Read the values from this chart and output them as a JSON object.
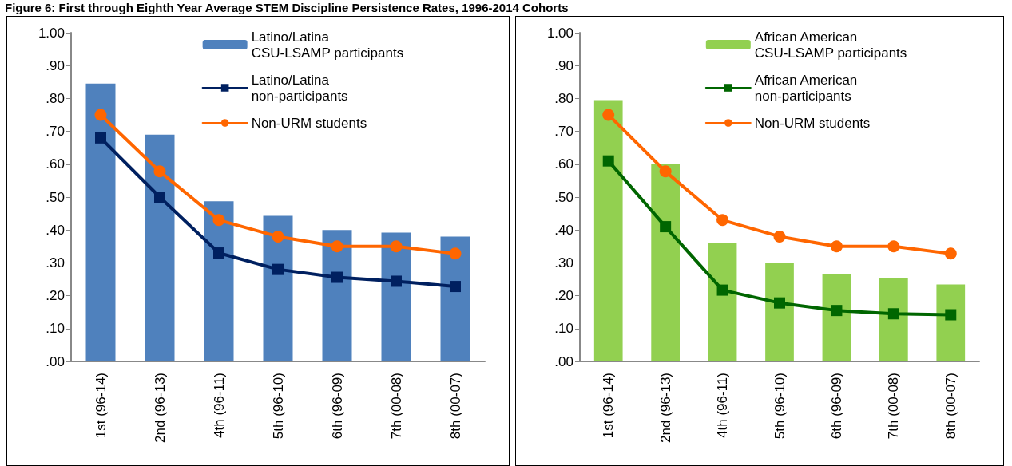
{
  "chart_data": [
    {
      "type": "bar",
      "title": "Figure 6: First through Eighth Year Average STEM Discipline Persistence Rates, 1996-2014 Cohorts",
      "categories": [
        "1st (96-14)",
        "2nd (96-13)",
        "4th (96-11)",
        "5th (96-10)",
        "6th (96-09)",
        "7th (00-08)",
        "8th (00-07)"
      ],
      "series": [
        {
          "name": "Latino/Latina\nCSU-LSAMP participants",
          "color": "#4f81bd",
          "values": [
            0.845,
            0.69,
            0.487,
            0.443,
            0.4,
            0.392,
            0.38
          ]
        },
        {
          "name": "Latino/Latina\nnon-participants",
          "type": "line",
          "marker": "square",
          "color": "#002060",
          "values": [
            0.68,
            0.5,
            0.33,
            0.28,
            0.256,
            0.244,
            0.228
          ]
        },
        {
          "name": "Non-URM students",
          "type": "line",
          "marker": "circle",
          "color": "#ff6600",
          "values": [
            0.75,
            0.578,
            0.43,
            0.38,
            0.35,
            0.35,
            0.328
          ]
        }
      ],
      "ylim": [
        0,
        1
      ],
      "yticks": [
        {
          "value": 0,
          "label": ".00"
        },
        {
          "value": 0.1,
          "label": ".10"
        },
        {
          "value": 0.2,
          "label": ".20"
        },
        {
          "value": 0.3,
          "label": ".30"
        },
        {
          "value": 0.4,
          "label": ".40"
        },
        {
          "value": 0.5,
          "label": ".50"
        },
        {
          "value": 0.6,
          "label": ".60"
        },
        {
          "value": 0.7,
          "label": ".70"
        },
        {
          "value": 0.8,
          "label": ".80"
        },
        {
          "value": 0.9,
          "label": ".90"
        },
        {
          "value": 1,
          "label": "1.00"
        }
      ],
      "grid": false,
      "legend": "top right"
    },
    {
      "type": "bar",
      "categories": [
        "1st (96-14)",
        "2nd (96-13)",
        "4th (96-11)",
        "5th (96-10)",
        "6th (96-09)",
        "7th (00-08)",
        "8th (00-07)"
      ],
      "series": [
        {
          "name": "African American\nCSU-LSAMP participants",
          "color": "#92d050",
          "values": [
            0.795,
            0.6,
            0.36,
            0.3,
            0.267,
            0.253,
            0.234
          ]
        },
        {
          "name": "African American\nnon-participants",
          "type": "line",
          "marker": "square",
          "color": "#006600",
          "values": [
            0.61,
            0.41,
            0.217,
            0.178,
            0.155,
            0.145,
            0.142
          ]
        },
        {
          "name": "Non-URM students",
          "type": "line",
          "marker": "circle",
          "color": "#ff6600",
          "values": [
            0.75,
            0.578,
            0.43,
            0.38,
            0.35,
            0.35,
            0.328
          ]
        }
      ],
      "ylim": [
        0,
        1
      ],
      "yticks": [
        {
          "value": 0,
          "label": ".00"
        },
        {
          "value": 0.1,
          "label": ".10"
        },
        {
          "value": 0.2,
          "label": ".20"
        },
        {
          "value": 0.3,
          "label": ".30"
        },
        {
          "value": 0.4,
          "label": ".40"
        },
        {
          "value": 0.5,
          "label": ".50"
        },
        {
          "value": 0.6,
          "label": ".60"
        },
        {
          "value": 0.7,
          "label": ".70"
        },
        {
          "value": 0.8,
          "label": ".80"
        },
        {
          "value": 0.9,
          "label": ".90"
        },
        {
          "value": 1,
          "label": "1.00"
        }
      ],
      "grid": false,
      "legend": "top right"
    }
  ]
}
